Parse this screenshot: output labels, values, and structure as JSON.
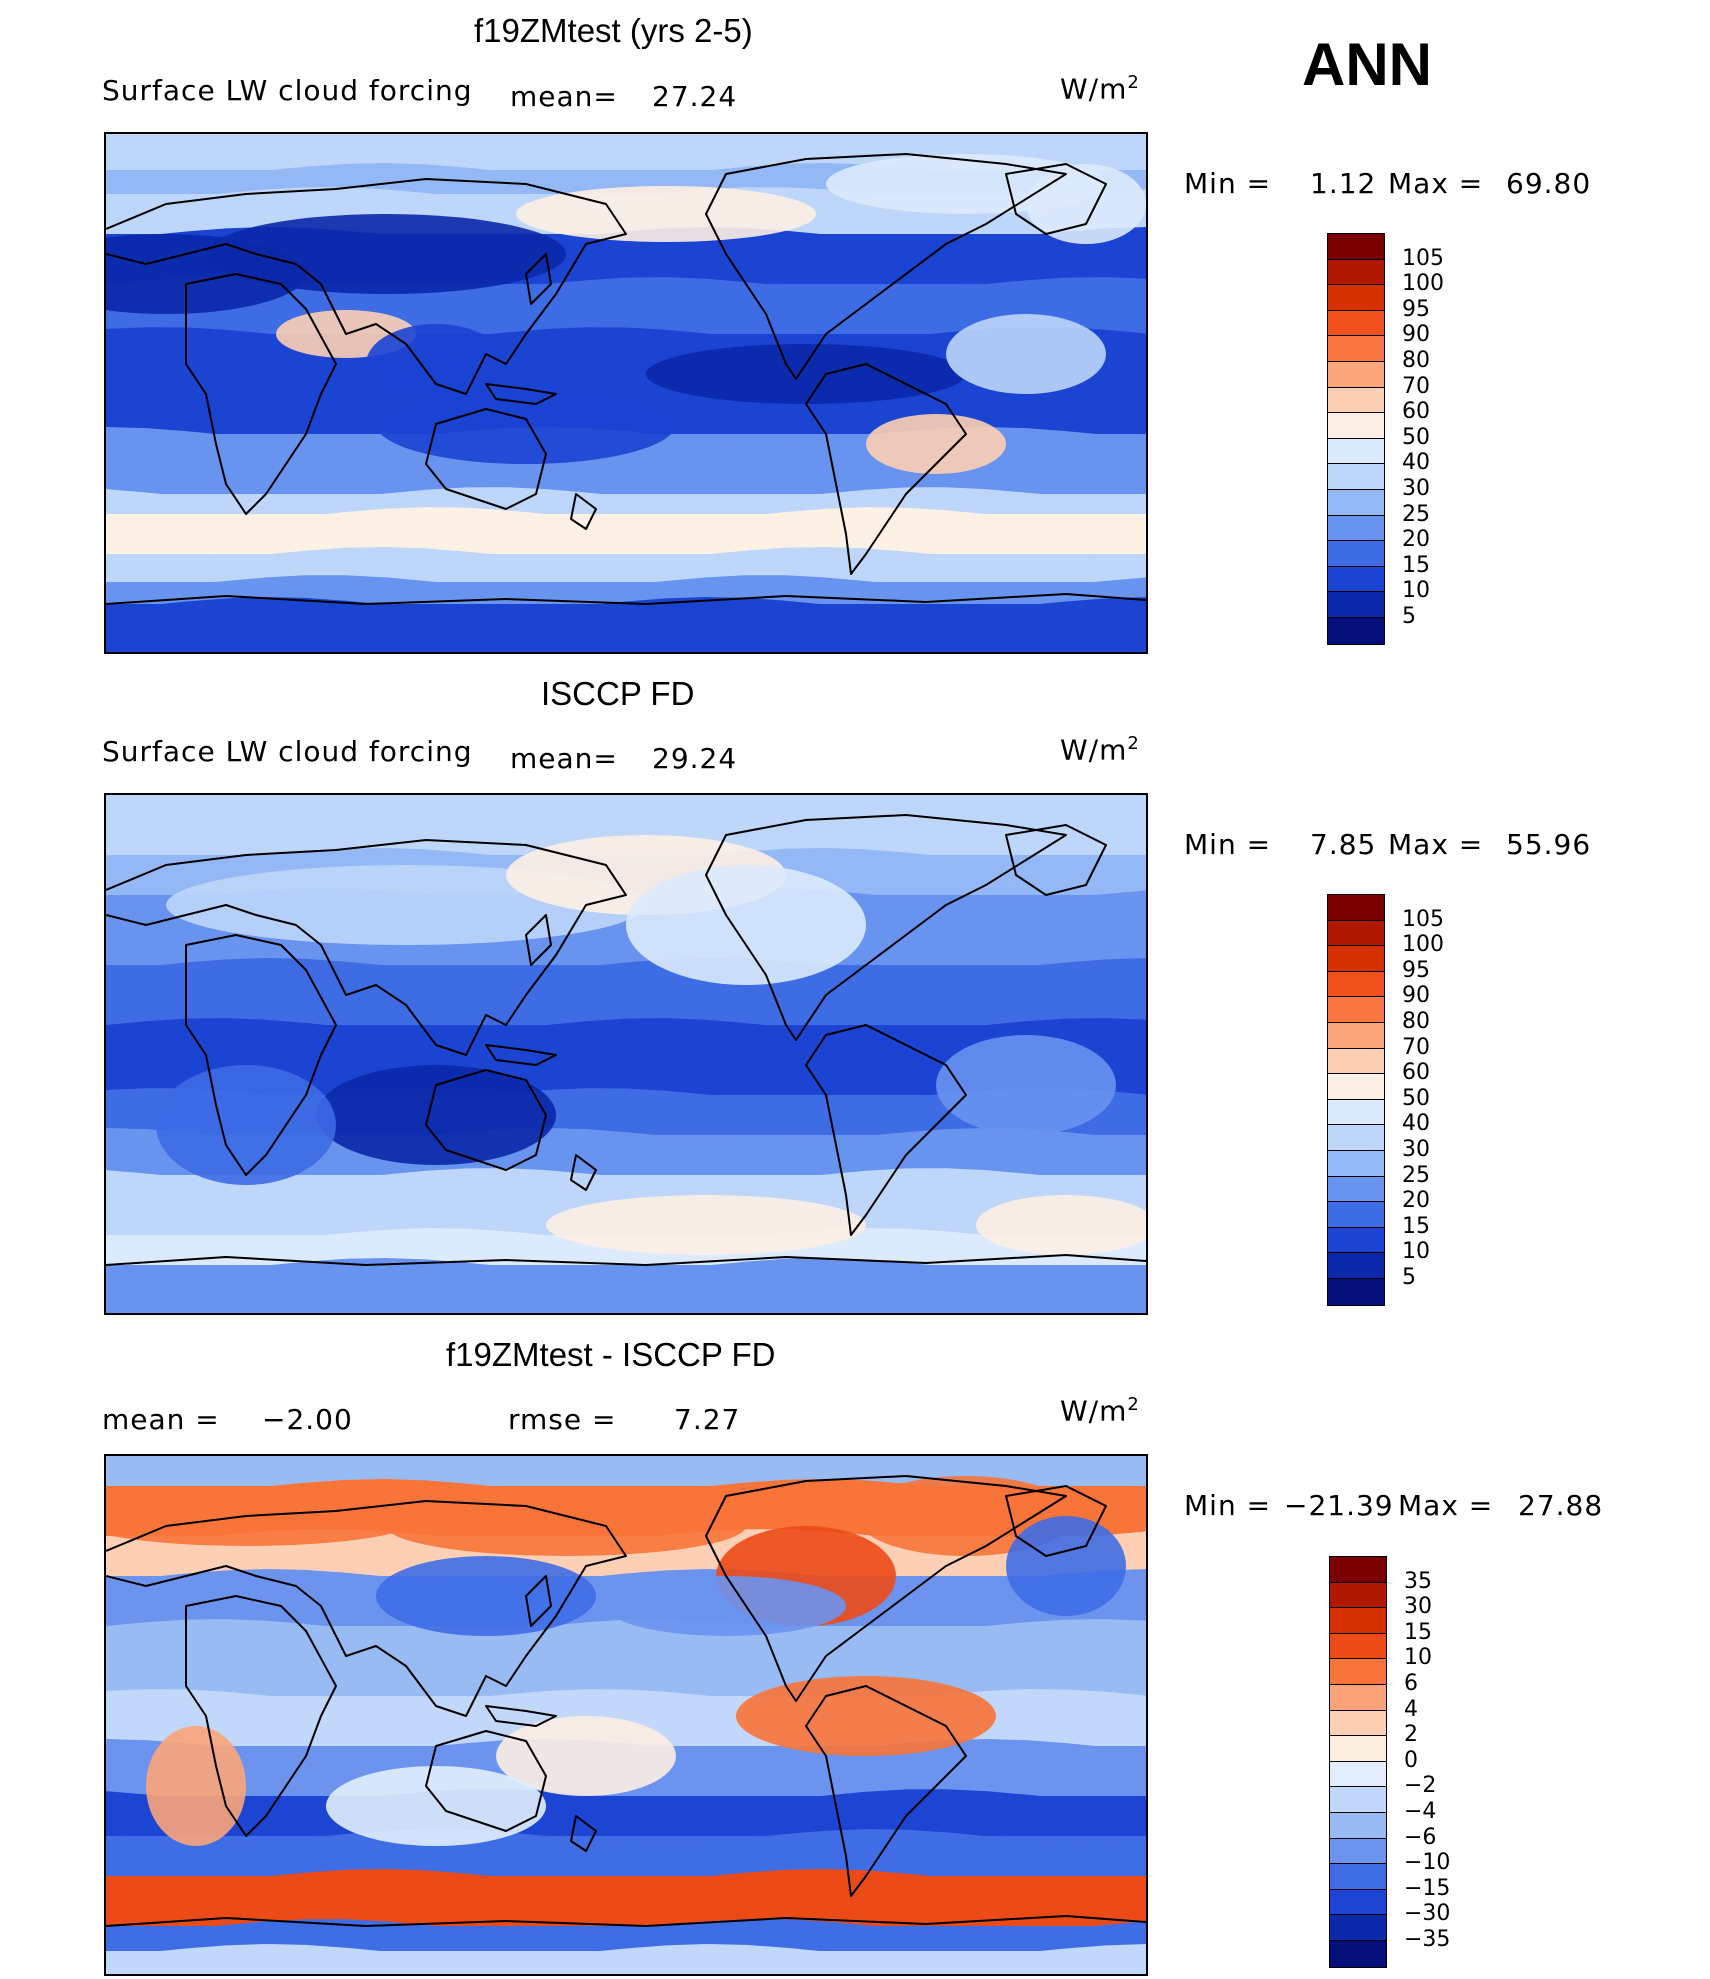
{
  "season": "ANN",
  "panels": [
    {
      "title": "f19ZMtest (yrs 2-5)",
      "variable": "Surface LW cloud forcing",
      "stat_label": "mean=",
      "stat_value": "27.24",
      "units": "W/m",
      "units_exp": "2",
      "min_label": "Min =",
      "min_value": "1.12",
      "max_label": "Max =",
      "max_value": "69.80",
      "palette": "abs",
      "colorbar_labels": [
        "105",
        "100",
        "95",
        "90",
        "80",
        "70",
        "60",
        "50",
        "40",
        "30",
        "25",
        "20",
        "15",
        "10",
        "5"
      ]
    },
    {
      "title": "ISCCP FD",
      "variable": "Surface LW cloud forcing",
      "stat_label": "mean=",
      "stat_value": "29.24",
      "units": "W/m",
      "units_exp": "2",
      "min_label": "Min =",
      "min_value": "7.85",
      "max_label": "Max =",
      "max_value": "55.96",
      "palette": "abs",
      "colorbar_labels": [
        "105",
        "100",
        "95",
        "90",
        "80",
        "70",
        "60",
        "50",
        "40",
        "30",
        "25",
        "20",
        "15",
        "10",
        "5"
      ]
    },
    {
      "title": "f19ZMtest - ISCCP FD",
      "mean_label": "mean =",
      "mean_value": "−2.00",
      "rmse_label": "rmse =",
      "rmse_value": "7.27",
      "units": "W/m",
      "units_exp": "2",
      "min_label": "Min =",
      "min_value": "−21.39",
      "max_label": "Max =",
      "max_value": "27.88",
      "palette": "diff",
      "colorbar_labels": [
        "35",
        "30",
        "15",
        "10",
        "6",
        "4",
        "2",
        "0",
        "−2",
        "−4",
        "−6",
        "−10",
        "−15",
        "−30",
        "−35"
      ]
    }
  ],
  "colors": {
    "abs": [
      "#7a0000",
      "#b01800",
      "#d43000",
      "#f0501c",
      "#fa7842",
      "#fca67c",
      "#fdcfb4",
      "#fdf0e4",
      "#dbeafc",
      "#bdd6fa",
      "#94b8f5",
      "#6893ee",
      "#3d6ce4",
      "#1b44d3",
      "#0a28a8",
      "#050f7a"
    ],
    "diff": [
      "#7a0000",
      "#b01800",
      "#d43000",
      "#ec4a16",
      "#f87438",
      "#fca478",
      "#fdd0b6",
      "#fdeee2",
      "#e2eefc",
      "#c2d8fa",
      "#99bbf4",
      "#6c94ee",
      "#3f6de5",
      "#1c45d4",
      "#0a28a8",
      "#050f7a"
    ]
  },
  "chart_data": [
    {
      "type": "heatmap",
      "title": "f19ZMtest (yrs 2-5)",
      "subtitle": "Surface LW cloud forcing",
      "mean": 27.24,
      "units": "W/m2",
      "min": 1.12,
      "max": 69.8,
      "levels": [
        5,
        10,
        15,
        20,
        25,
        30,
        40,
        50,
        60,
        70,
        80,
        90,
        95,
        100,
        105
      ]
    },
    {
      "type": "heatmap",
      "title": "ISCCP FD",
      "subtitle": "Surface LW cloud forcing",
      "mean": 29.24,
      "units": "W/m2",
      "min": 7.85,
      "max": 55.96,
      "levels": [
        5,
        10,
        15,
        20,
        25,
        30,
        40,
        50,
        60,
        70,
        80,
        90,
        95,
        100,
        105
      ]
    },
    {
      "type": "heatmap",
      "title": "f19ZMtest - ISCCP FD",
      "mean": -2.0,
      "rmse": 7.27,
      "units": "W/m2",
      "min": -21.39,
      "max": 27.88,
      "levels": [
        -35,
        -30,
        -15,
        -10,
        -6,
        -4,
        -2,
        0,
        2,
        4,
        6,
        10,
        15,
        30,
        35
      ]
    }
  ]
}
